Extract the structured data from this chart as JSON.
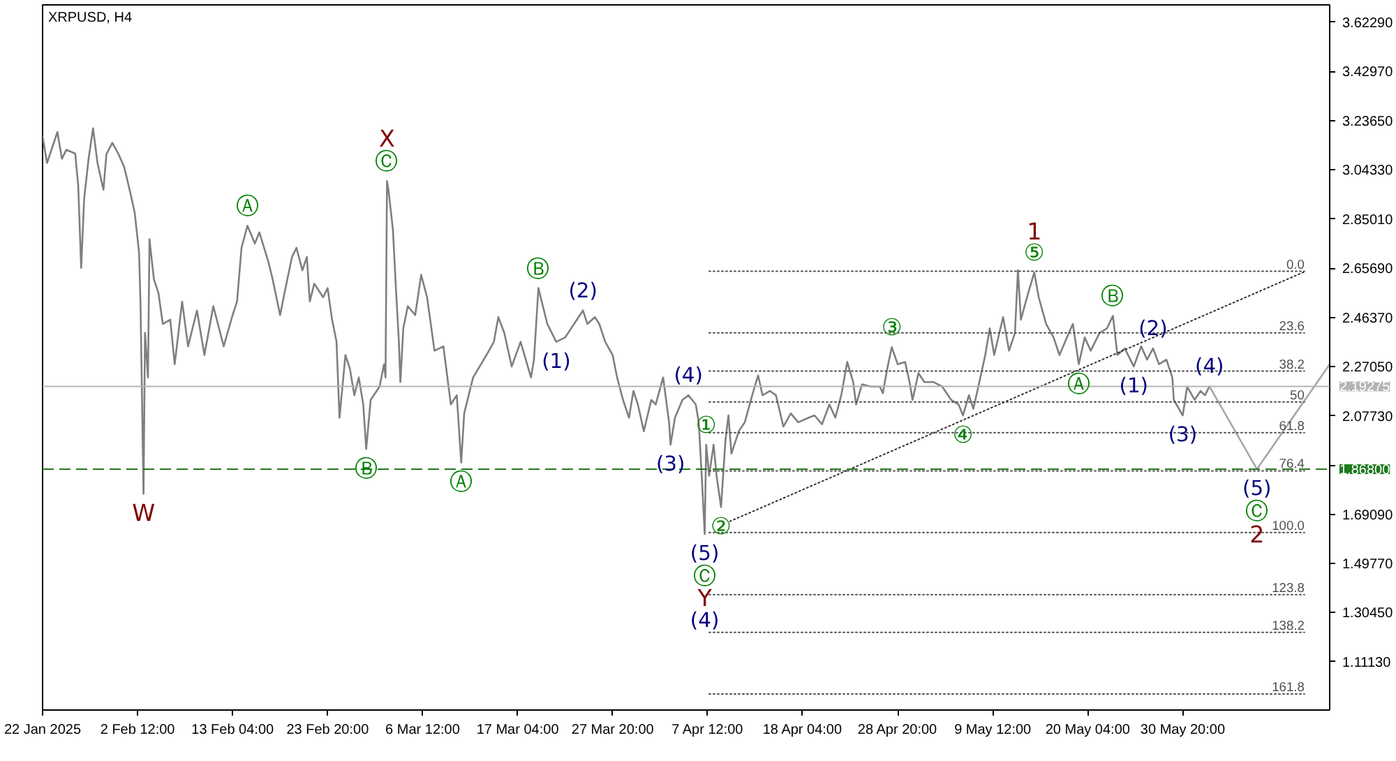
{
  "chart_data": {
    "type": "line",
    "title": "XRPUSD, H4",
    "xlim": [
      "2025-01-22T20:00",
      "2025-06-16T08:00"
    ],
    "ylim": [
      0.922,
      3.691
    ],
    "xticks": [
      {
        "value": "2025-01-22T20:00",
        "label": "22 Jan 2025"
      },
      {
        "value": "2025-02-02T12:00",
        "label": "2 Feb 12:00"
      },
      {
        "value": "2025-02-13T04:00",
        "label": "13 Feb 04:00"
      },
      {
        "value": "2025-02-23T20:00",
        "label": "23 Feb 20:00"
      },
      {
        "value": "2025-03-06T12:00",
        "label": "6 Mar 12:00"
      },
      {
        "value": "2025-03-17T04:00",
        "label": "17 Mar 04:00"
      },
      {
        "value": "2025-03-27T20:00",
        "label": "27 Mar 20:00"
      },
      {
        "value": "2025-04-07T12:00",
        "label": "7 Apr 12:00"
      },
      {
        "value": "2025-04-18T04:00",
        "label": "18 Apr 04:00"
      },
      {
        "value": "2025-04-28T20:00",
        "label": "28 Apr 20:00"
      },
      {
        "value": "2025-05-09T12:00",
        "label": "9 May 12:00"
      },
      {
        "value": "2025-05-20T04:00",
        "label": "20 May 04:00"
      },
      {
        "value": "2025-05-30T20:00",
        "label": "30 May 20:00"
      }
    ],
    "yticks": [
      {
        "value": 3.6229,
        "label": "3.62290"
      },
      {
        "value": 3.4297,
        "label": "3.42970"
      },
      {
        "value": 3.2365,
        "label": "3.23650"
      },
      {
        "value": 3.0433,
        "label": "3.04330"
      },
      {
        "value": 2.8501,
        "label": "2.85010"
      },
      {
        "value": 2.6569,
        "label": "2.65690"
      },
      {
        "value": 2.4637,
        "label": "2.46370"
      },
      {
        "value": 2.2705,
        "label": "2.27050"
      },
      {
        "value": 2.0773,
        "label": "2.07730"
      },
      {
        "value": 1.8841,
        "label": null
      },
      {
        "value": 1.6909,
        "label": "1.69090"
      },
      {
        "value": 1.4977,
        "label": "1.49770"
      },
      {
        "value": 1.3045,
        "label": "1.30450"
      },
      {
        "value": 1.1113,
        "label": "1.11130"
      }
    ],
    "grid": false,
    "series": [
      {
        "color": "#7f7f7f",
        "x": [
          "2025-01-22T20:00",
          "2025-01-23T08:00",
          "2025-01-24T12:00",
          "2025-01-25T00:00",
          "2025-01-25T12:00",
          "2025-01-26T12:00",
          "2025-01-26T20:00",
          "2025-01-27T04:00",
          "2025-01-27T12:00",
          "2025-01-28T00:00",
          "2025-01-28T12:00",
          "2025-01-29T00:00",
          "2025-01-29T16:00",
          "2025-01-30T00:00",
          "2025-01-30T16:00",
          "2025-01-31T08:00",
          "2025-02-01T00:00",
          "2025-02-01T16:00",
          "2025-02-02T04:00",
          "2025-02-02T16:00",
          "2025-02-02T20:00",
          "2025-02-03T04:00",
          "2025-02-03T08:00",
          "2025-02-03T16:00",
          "2025-02-03T20:00",
          "2025-02-04T08:00",
          "2025-02-04T20:00",
          "2025-02-05T08:00",
          "2025-02-06T04:00",
          "2025-02-06T16:00",
          "2025-02-07T12:00",
          "2025-02-08T04:00",
          "2025-02-09T04:00",
          "2025-02-10T00:00",
          "2025-02-11T00:00",
          "2025-02-12T04:00",
          "2025-02-13T04:00",
          "2025-02-13T16:00",
          "2025-02-14T04:00",
          "2025-02-14T20:00",
          "2025-02-15T16:00",
          "2025-02-16T04:00",
          "2025-02-17T04:00",
          "2025-02-17T16:00",
          "2025-02-18T12:00",
          "2025-02-19T00:00",
          "2025-02-19T20:00",
          "2025-02-20T08:00",
          "2025-02-21T00:00",
          "2025-02-21T12:00",
          "2025-02-21T20:00",
          "2025-02-22T08:00",
          "2025-02-23T08:00",
          "2025-02-23T20:00",
          "2025-02-24T08:00",
          "2025-02-24T20:00",
          "2025-02-25T04:00",
          "2025-02-25T20:00",
          "2025-02-26T08:00",
          "2025-02-26T20:00",
          "2025-02-27T08:00",
          "2025-02-27T20:00",
          "2025-02-28T04:00",
          "2025-02-28T16:00",
          "2025-03-01T16:00",
          "2025-03-02T04:00",
          "2025-03-02T08:00",
          "2025-03-02T12:00",
          "2025-03-02T16:00",
          "2025-03-03T04:00",
          "2025-03-03T12:00",
          "2025-03-03T20:00",
          "2025-03-04T00:00",
          "2025-03-04T08:00",
          "2025-03-04T20:00",
          "2025-03-05T16:00",
          "2025-03-06T08:00",
          "2025-03-07T00:00",
          "2025-03-07T20:00",
          "2025-03-08T20:00",
          "2025-03-09T16:00",
          "2025-03-10T08:00",
          "2025-03-10T20:00",
          "2025-03-11T04:00",
          "2025-03-12T04:00",
          "2025-03-13T16:00",
          "2025-03-14T12:00",
          "2025-03-15T00:00",
          "2025-03-15T16:00",
          "2025-03-16T12:00",
          "2025-03-17T12:00",
          "2025-03-18T16:00",
          "2025-03-19T00:00",
          "2025-03-19T12:00",
          "2025-03-20T00:00",
          "2025-03-20T12:00",
          "2025-03-21T12:00",
          "2025-03-22T12:00",
          "2025-03-23T12:00",
          "2025-03-24T12:00",
          "2025-03-25T00:00",
          "2025-03-25T20:00",
          "2025-03-26T08:00",
          "2025-03-27T00:00",
          "2025-03-27T20:00",
          "2025-03-28T08:00",
          "2025-03-29T00:00",
          "2025-03-29T16:00",
          "2025-03-30T04:00",
          "2025-03-30T16:00",
          "2025-03-31T08:00",
          "2025-04-01T04:00",
          "2025-04-01T16:00",
          "2025-04-02T12:00",
          "2025-04-03T04:00",
          "2025-04-03T08:00",
          "2025-04-03T20:00",
          "2025-04-04T16:00",
          "2025-04-05T08:00",
          "2025-04-06T04:00",
          "2025-04-06T12:00",
          "2025-04-06T20:00",
          "2025-04-07T04:00",
          "2025-04-07T08:00",
          "2025-04-07T16:00",
          "2025-04-08T04:00",
          "2025-04-08T12:00",
          "2025-04-09T00:00",
          "2025-04-09T12:00",
          "2025-04-09T20:00",
          "2025-04-10T04:00",
          "2025-04-11T00:00",
          "2025-04-11T16:00",
          "2025-04-12T12:00",
          "2025-04-13T04:00",
          "2025-04-13T16:00",
          "2025-04-14T12:00",
          "2025-04-15T04:00",
          "2025-04-16T00:00",
          "2025-04-16T20:00",
          "2025-04-17T16:00",
          "2025-04-18T20:00",
          "2025-04-19T12:00",
          "2025-04-20T08:00",
          "2025-04-21T04:00",
          "2025-04-21T20:00",
          "2025-04-22T12:00",
          "2025-04-23T04:00",
          "2025-04-23T20:00",
          "2025-04-24T04:00",
          "2025-04-24T20:00",
          "2025-04-25T20:00",
          "2025-04-26T20:00",
          "2025-04-27T04:00",
          "2025-04-27T16:00",
          "2025-04-28T04:00",
          "2025-04-28T20:00",
          "2025-04-29T16:00",
          "2025-04-30T04:00",
          "2025-04-30T12:00",
          "2025-05-01T04:00",
          "2025-05-01T20:00",
          "2025-05-02T20:00",
          "2025-05-03T20:00",
          "2025-05-04T20:00",
          "2025-05-05T16:00",
          "2025-05-06T04:00",
          "2025-05-06T20:00",
          "2025-05-07T08:00",
          "2025-05-08T00:00",
          "2025-05-08T16:00",
          "2025-05-09T04:00",
          "2025-05-09T16:00",
          "2025-05-10T16:00",
          "2025-05-11T08:00",
          "2025-05-12T00:00",
          "2025-05-12T08:00",
          "2025-05-12T16:00",
          "2025-05-13T12:00",
          "2025-05-14T04:00",
          "2025-05-14T16:00",
          "2025-05-15T12:00",
          "2025-05-16T08:00",
          "2025-05-17T00:00",
          "2025-05-17T20:00",
          "2025-05-18T12:00",
          "2025-05-19T04:00",
          "2025-05-19T20:00",
          "2025-05-20T12:00",
          "2025-05-21T12:00",
          "2025-05-22T08:00",
          "2025-05-23T00:00",
          "2025-05-23T12:00",
          "2025-05-24T08:00",
          "2025-05-25T08:00",
          "2025-05-26T04:00",
          "2025-05-26T20:00",
          "2025-05-27T12:00",
          "2025-05-28T04:00",
          "2025-05-29T00:00",
          "2025-05-29T16:00",
          "2025-05-29T20:00",
          "2025-05-30T20:00",
          "2025-05-31T08:00",
          "2025-06-01T04:00",
          "2025-06-01T20:00",
          "2025-06-02T08:00",
          "2025-06-02T20:00"
        ],
        "values": [
          3.175,
          3.07,
          3.192,
          3.087,
          3.122,
          3.107,
          2.982,
          2.658,
          2.929,
          3.087,
          3.206,
          3.07,
          2.965,
          3.105,
          3.149,
          3.107,
          3.054,
          2.956,
          2.877,
          2.719,
          2.508,
          1.771,
          2.403,
          2.228,
          2.771,
          2.613,
          2.561,
          2.438,
          2.455,
          2.28,
          2.526,
          2.35,
          2.491,
          2.316,
          2.508,
          2.35,
          2.473,
          2.526,
          2.737,
          2.824,
          2.754,
          2.798,
          2.684,
          2.613,
          2.473,
          2.561,
          2.701,
          2.737,
          2.649,
          2.701,
          2.526,
          2.596,
          2.543,
          2.579,
          2.455,
          2.368,
          2.07,
          2.316,
          2.263,
          2.158,
          2.228,
          2.122,
          1.947,
          2.14,
          2.192,
          2.28,
          2.228,
          2.999,
          2.964,
          2.807,
          2.58,
          2.37,
          2.21,
          2.421,
          2.508,
          2.473,
          2.631,
          2.543,
          2.333,
          2.35,
          2.122,
          2.158,
          1.894,
          2.087,
          2.228,
          2.316,
          2.368,
          2.465,
          2.403,
          2.271,
          2.368,
          2.228,
          2.298,
          2.579,
          2.508,
          2.438,
          2.368,
          2.385,
          2.438,
          2.491,
          2.438,
          2.465,
          2.438,
          2.368,
          2.316,
          2.228,
          2.14,
          2.07,
          2.175,
          2.122,
          2.017,
          2.14,
          2.122,
          2.228,
          2.052,
          1.964,
          2.07,
          2.14,
          2.158,
          2.122,
          2.052,
          1.842,
          1.613,
          1.964,
          1.842,
          1.964,
          1.842,
          1.719,
          1.982,
          2.079,
          1.929,
          2.017,
          2.052,
          2.158,
          2.236,
          2.158,
          2.175,
          2.158,
          2.035,
          2.087,
          2.052,
          2.07,
          2.079,
          2.044,
          2.122,
          2.07,
          2.158,
          2.289,
          2.21,
          2.122,
          2.201,
          2.192,
          2.192,
          2.166,
          2.263,
          2.347,
          2.28,
          2.289,
          2.21,
          2.14,
          2.245,
          2.21,
          2.21,
          2.192,
          2.14,
          2.122,
          2.079,
          2.158,
          2.105,
          2.21,
          2.316,
          2.421,
          2.316,
          2.465,
          2.333,
          2.403,
          2.649,
          2.455,
          2.561,
          2.64,
          2.543,
          2.438,
          2.385,
          2.316,
          2.385,
          2.438,
          2.28,
          2.385,
          2.333,
          2.403,
          2.421,
          2.47,
          2.316,
          2.342,
          2.271,
          2.35,
          2.298,
          2.342,
          2.28,
          2.298,
          2.228,
          2.14,
          2.079,
          2.192,
          2.14,
          2.175,
          2.158,
          2.193
        ]
      },
      {
        "color": "#a6a6a6",
        "x": [
          "2025-06-02T20:00",
          "2025-06-08T04:00",
          "2025-06-16T08:00"
        ],
        "values": [
          2.193,
          1.868,
          2.28
        ]
      },
      {
        "color": "#303030",
        "line_style": "dotted",
        "x": [
          "2025-04-10T00:00",
          "2025-06-13T12:00"
        ],
        "values": [
          1.663,
          2.643
        ]
      },
      {
        "name": "0.0",
        "color": "#505050",
        "line_style": "dotted",
        "x": [
          "2025-04-07T16:00",
          "2025-06-13T12:00"
        ],
        "values": [
          2.645,
          2.645
        ]
      },
      {
        "name": "23.6",
        "color": "#505050",
        "line_style": "dotted",
        "x": [
          "2025-04-07T16:00",
          "2025-06-13T12:00"
        ],
        "values": [
          2.403,
          2.403
        ]
      },
      {
        "name": "38.2",
        "color": "#505050",
        "line_style": "dotted",
        "x": [
          "2025-04-07T16:00",
          "2025-06-13T12:00"
        ],
        "values": [
          2.253,
          2.253
        ]
      },
      {
        "name": "50",
        "color": "#505050",
        "line_style": "dotted",
        "x": [
          "2025-04-07T16:00",
          "2025-06-13T12:00"
        ],
        "values": [
          2.132,
          2.132
        ]
      },
      {
        "name": "61.8",
        "color": "#505050",
        "line_style": "dotted",
        "x": [
          "2025-04-07T16:00",
          "2025-06-13T12:00"
        ],
        "values": [
          2.011,
          2.011
        ]
      },
      {
        "name": "76.4",
        "color": "#505050",
        "line_style": "dotted",
        "x": [
          "2025-04-07T16:00",
          "2025-06-13T12:00"
        ],
        "values": [
          1.861,
          1.861
        ]
      },
      {
        "name": "100.0",
        "color": "#505050",
        "line_style": "dotted",
        "x": [
          "2025-04-07T16:00",
          "2025-06-13T12:00"
        ],
        "values": [
          1.619,
          1.619
        ]
      },
      {
        "name": "123.8",
        "color": "#505050",
        "line_style": "dotted",
        "x": [
          "2025-04-07T16:00",
          "2025-06-13T12:00"
        ],
        "values": [
          1.375,
          1.375
        ]
      },
      {
        "name": "138.2",
        "color": "#505050",
        "line_style": "dotted",
        "x": [
          "2025-04-07T16:00",
          "2025-06-13T12:00"
        ],
        "values": [
          1.227,
          1.227
        ]
      },
      {
        "name": "161.8",
        "color": "#505050",
        "line_style": "dotted",
        "x": [
          "2025-04-07T16:00",
          "2025-06-13T12:00"
        ],
        "values": [
          0.985,
          0.985
        ]
      }
    ],
    "ref_lines": [
      {
        "axis": "y",
        "value": 2.19275,
        "label": "2.19275",
        "color": "#b4b4b4",
        "line_style": "solid"
      },
      {
        "axis": "y",
        "value": 1.868,
        "label": "1.86800",
        "color": "#1e7a1e",
        "line_style": "dashed"
      }
    ],
    "annotations": [
      {
        "text": "W",
        "x": "2025-02-03T04:00",
        "y": 1.771
      },
      {
        "text": "Ⓒ",
        "x": "2025-03-02T12:00",
        "y": 2.999
      },
      {
        "text": "X",
        "x": "2025-03-02T12:00",
        "y": 2.999
      },
      {
        "text": "Ⓐ",
        "x": "2025-02-14T20:00",
        "y": 2.824
      },
      {
        "text": "Ⓑ",
        "x": "2025-02-28T04:00",
        "y": 1.947
      },
      {
        "text": "Ⓐ",
        "x": "2025-03-10T20:00",
        "y": 1.894
      },
      {
        "text": "Ⓑ",
        "x": "2025-03-19T12:00",
        "y": 2.579
      },
      {
        "text": "(1)",
        "x": "2025-03-21T12:00",
        "y": 2.368
      },
      {
        "text": "(2)",
        "x": "2025-03-24T12:00",
        "y": 2.491
      },
      {
        "text": "(3)",
        "x": "2025-04-03T08:00",
        "y": 1.964
      },
      {
        "text": "(4)",
        "x": "2025-04-05T08:00",
        "y": 2.158
      },
      {
        "text": "(5)",
        "x": "2025-04-07T04:00",
        "y": 1.613
      },
      {
        "text": "Ⓒ",
        "x": "2025-04-07T04:00",
        "y": 1.613
      },
      {
        "text": "Y",
        "x": "2025-04-07T04:00",
        "y": 1.613
      },
      "(4)",
      {
        "text": "①",
        "x": "2025-04-07T08:00",
        "y": 1.964
      },
      {
        "text": "②",
        "x": "2025-04-09T00:00",
        "y": 1.719
      },
      {
        "text": "③",
        "x": "2025-04-28T04:00",
        "y": 2.347
      },
      {
        "text": "④",
        "x": "2025-05-06T04:00",
        "y": 2.079
      },
      {
        "text": "⑤",
        "x": "2025-05-14T04:00",
        "y": 2.64
      },
      {
        "text": "1",
        "x": "2025-05-14T04:00",
        "y": 2.64
      },
      {
        "text": "Ⓐ",
        "x": "2025-05-19T04:00",
        "y": 2.28
      },
      {
        "text": "Ⓑ",
        "x": "2025-05-23T00:00",
        "y": 2.47
      },
      {
        "text": "(1)",
        "x": "2025-05-25T08:00",
        "y": 2.271
      },
      {
        "text": "(2)",
        "x": "2025-05-27T12:00",
        "y": 2.342
      },
      {
        "text": "(3)",
        "x": "2025-05-30T20:00",
        "y": 2.079
      },
      {
        "text": "(4)",
        "x": "2025-06-02T20:00",
        "y": 2.193
      },
      {
        "text": "(5)",
        "x": "2025-06-08T04:00",
        "y": 1.868
      },
      {
        "text": "Ⓒ",
        "x": "2025-06-08T04:00",
        "y": 1.868
      },
      {
        "text": "2",
        "x": "2025-06-08T04:00",
        "y": 1.868
      }
    ]
  }
}
